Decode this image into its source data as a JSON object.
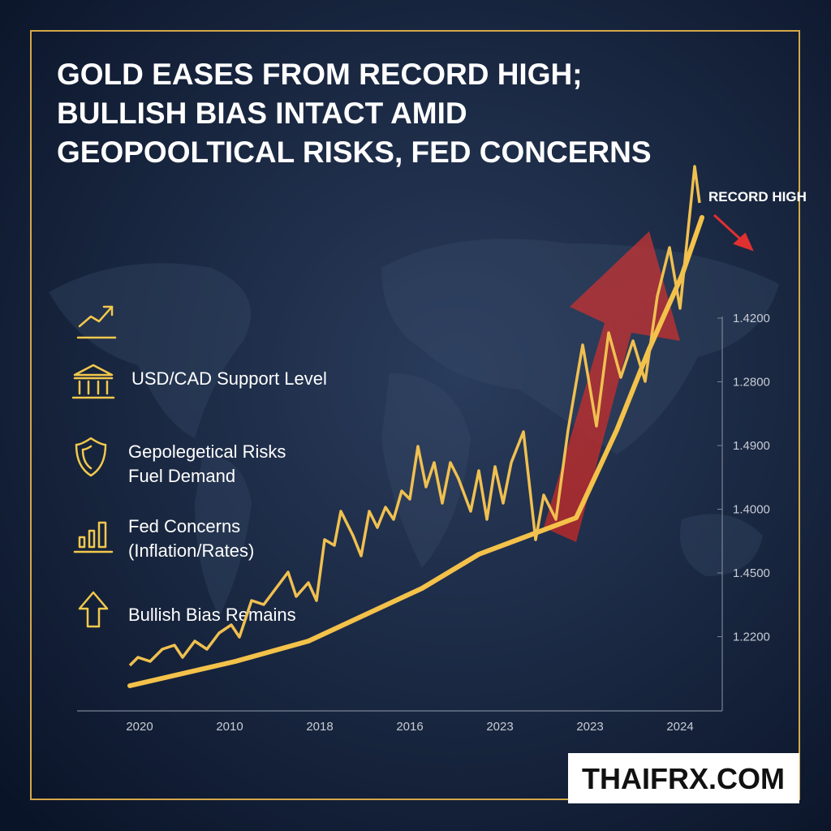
{
  "title": [
    "GOLD EASES FROM RECORD HIGH;",
    "BULLISH BIAS INTACT AMID",
    "GEOPOOLTICAL RISKS, FED CONCERNS"
  ],
  "annotation": "RECORD HIGH",
  "factors": [
    {
      "lines": [
        "USD/CAD Support Level"
      ]
    },
    {
      "lines": [
        "Gepolegetical Risks",
        "Fuel Demand"
      ]
    },
    {
      "lines": [
        "Fed Concerns",
        "(Inflation/Rates)"
      ]
    },
    {
      "lines": [
        "Bullish Bias Remains"
      ]
    }
  ],
  "y_axis_labels": [
    "1.4200",
    "1.2800",
    "1.4900",
    "1.4000",
    "1.4500",
    "1.2200"
  ],
  "x_axis_labels": [
    "2020",
    "2010",
    "2018",
    "2016",
    "2023",
    "2023",
    "2024"
  ],
  "watermark": "THAIFRX.COM"
}
